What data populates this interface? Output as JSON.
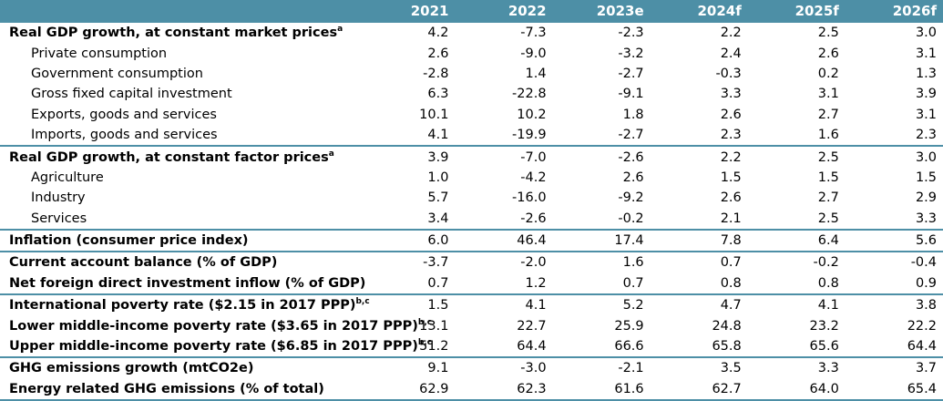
{
  "header": {
    "years": [
      "2021",
      "2022",
      "2023e",
      "2024f",
      "2025f",
      "2026f"
    ]
  },
  "rows": [
    {
      "label": "Real GDP growth, at constant market prices",
      "sup": "a",
      "values": [
        "4.2",
        "-7.3",
        "-2.3",
        "2.2",
        "2.5",
        "3.0"
      ]
    },
    {
      "label": "Private consumption",
      "sup": "",
      "values": [
        "2.6",
        "-9.0",
        "-3.2",
        "2.4",
        "2.6",
        "3.1"
      ]
    },
    {
      "label": "Government consumption",
      "sup": "",
      "values": [
        "-2.8",
        "1.4",
        "-2.7",
        "-0.3",
        "0.2",
        "1.3"
      ]
    },
    {
      "label": "Gross fixed capital investment",
      "sup": "",
      "values": [
        "6.3",
        "-22.8",
        "-9.1",
        "3.3",
        "3.1",
        "3.9"
      ]
    },
    {
      "label": "Exports, goods and services",
      "sup": "",
      "values": [
        "10.1",
        "10.2",
        "1.8",
        "2.6",
        "2.7",
        "3.1"
      ]
    },
    {
      "label": "Imports, goods and services",
      "sup": "",
      "values": [
        "4.1",
        "-19.9",
        "-2.7",
        "2.3",
        "1.6",
        "2.3"
      ]
    },
    {
      "label": "Real GDP growth, at constant factor prices",
      "sup": "a",
      "values": [
        "3.9",
        "-7.0",
        "-2.6",
        "2.2",
        "2.5",
        "3.0"
      ]
    },
    {
      "label": "Agriculture",
      "sup": "",
      "values": [
        "1.0",
        "-4.2",
        "2.6",
        "1.5",
        "1.5",
        "1.5"
      ]
    },
    {
      "label": "Industry",
      "sup": "",
      "values": [
        "5.7",
        "-16.0",
        "-9.2",
        "2.6",
        "2.7",
        "2.9"
      ]
    },
    {
      "label": "Services",
      "sup": "",
      "values": [
        "3.4",
        "-2.6",
        "-0.2",
        "2.1",
        "2.5",
        "3.3"
      ]
    },
    {
      "label": "Inflation (consumer price index)",
      "sup": "",
      "values": [
        "6.0",
        "46.4",
        "17.4",
        "7.8",
        "6.4",
        "5.6"
      ]
    },
    {
      "label": "Current account balance (% of GDP)",
      "sup": "",
      "values": [
        "-3.7",
        "-2.0",
        "1.6",
        "0.7",
        "-0.2",
        "-0.4"
      ]
    },
    {
      "label": "Net foreign direct investment inflow (% of GDP)",
      "sup": "",
      "values": [
        "0.7",
        "1.2",
        "0.7",
        "0.8",
        "0.8",
        "0.9"
      ]
    },
    {
      "label": "International poverty rate ($2.15 in 2017 PPP)",
      "sup": "b,c",
      "values": [
        "1.5",
        "4.1",
        "5.2",
        "4.7",
        "4.1",
        "3.8"
      ]
    },
    {
      "label": "Lower middle-income poverty rate ($3.65 in 2017 PPP)",
      "sup": "b,c",
      "values": [
        "13.1",
        "22.7",
        "25.9",
        "24.8",
        "23.2",
        "22.2"
      ]
    },
    {
      "label": "Upper middle-income poverty rate ($6.85 in 2017 PPP)",
      "sup": "b,c",
      "values": [
        "51.2",
        "64.4",
        "66.6",
        "65.8",
        "65.6",
        "64.4"
      ]
    },
    {
      "label": "GHG emissions growth (mtCO2e)",
      "sup": "",
      "values": [
        "9.1",
        "-3.0",
        "-2.1",
        "3.5",
        "3.3",
        "3.7"
      ]
    },
    {
      "label": "Energy related GHG emissions (% of total)",
      "sup": "",
      "values": [
        "62.9",
        "62.3",
        "61.6",
        "62.7",
        "64.0",
        "65.4"
      ]
    }
  ]
}
